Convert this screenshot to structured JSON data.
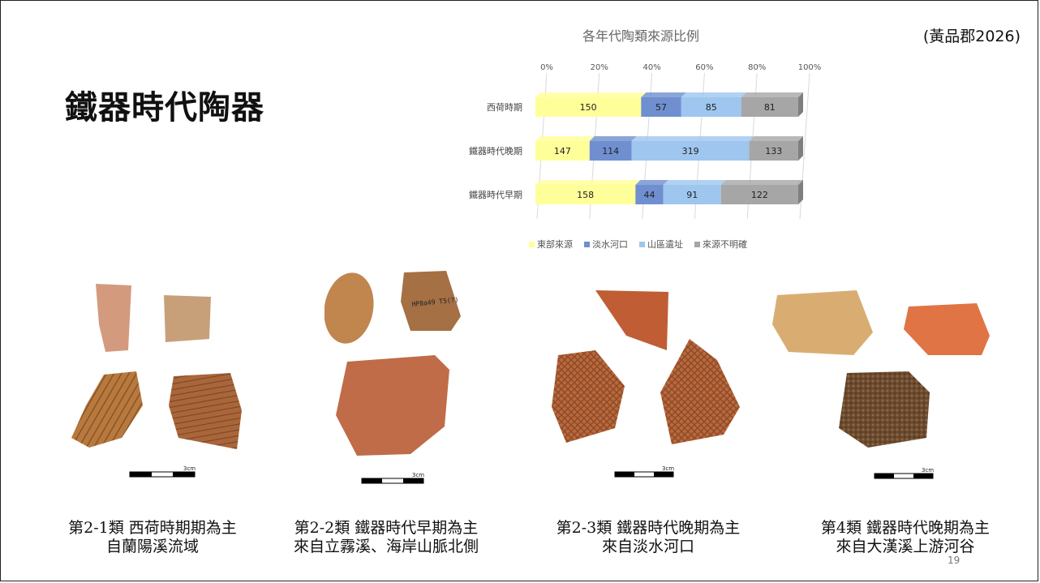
{
  "slide": {
    "title": "鐵器時代陶器",
    "citation": "(黃品郡2026)",
    "page_number": "19"
  },
  "chart_data": {
    "type": "bar",
    "stacked": "100%",
    "orientation": "horizontal",
    "title": "各年代陶類來源比例",
    "categories": [
      "西荷時期",
      "鐵器時代晚期",
      "鐵器時代早期"
    ],
    "series": [
      {
        "name": "東部來源",
        "color": "#ffff99",
        "values": [
          150,
          147,
          158
        ]
      },
      {
        "name": "淡水河口",
        "color": "#6f8fd0",
        "values": [
          57,
          114,
          44
        ]
      },
      {
        "name": "山區遺址",
        "color": "#9ec6ef",
        "values": [
          85,
          319,
          91
        ]
      },
      {
        "name": "來源不明確",
        "color": "#a6a6a6",
        "values": [
          81,
          133,
          122
        ]
      }
    ],
    "x_ticks": [
      "0%",
      "20%",
      "40%",
      "60%",
      "80%",
      "100%"
    ],
    "xlim": [
      0,
      100
    ],
    "legend_position": "bottom",
    "grid": true
  },
  "captions": [
    {
      "line1": "第2-1類 西荷時期期為主",
      "line2": "自蘭陽溪流域"
    },
    {
      "line1": "第2-2類 鐵器時代早期為主",
      "line2": "來自立霧溪、海岸山脈北側"
    },
    {
      "line1": "第2-3類 鐵器時代晚期為主",
      "line2": "來自淡水河口"
    },
    {
      "line1": "第4類 鐵器時代晚期為主",
      "line2": "來自大漢溪上游河谷"
    }
  ],
  "scale_bar_label": "3cm",
  "sherd_inscription": "HP8a49 T5(?)"
}
